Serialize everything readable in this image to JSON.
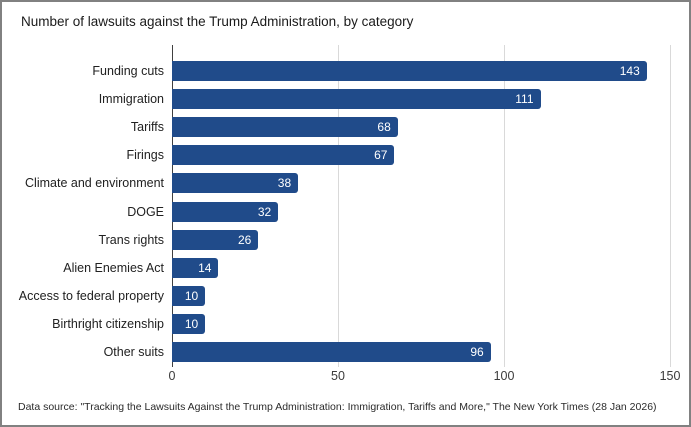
{
  "window": {
    "background": "#ffffff",
    "border_color": "#818181"
  },
  "footer_note": "Data source: \"Tracking the Lawsuits Against the Trump Administration: Immigration, Tariffs and More,\" The New York Times (28 Jan 2026)",
  "chart_data": {
    "type": "bar",
    "orientation": "horizontal",
    "title": "Number of lawsuits against the Trump Administration, by category",
    "categories": [
      "Funding cuts",
      "Immigration",
      "Tariffs",
      "Firings",
      "Climate and environment",
      "DOGE",
      "Trans rights",
      "Alien Enemies Act",
      "Access to federal property",
      "Birthright citizenship",
      "Other suits"
    ],
    "values": [
      143,
      111,
      68,
      67,
      38,
      32,
      26,
      14,
      10,
      10,
      96
    ],
    "xlabel": "",
    "ylabel": "",
    "xlim": [
      0,
      150
    ],
    "x_ticks": [
      0,
      50,
      100,
      150
    ],
    "grid": true,
    "legend": false,
    "bar_color": "#204b8a",
    "value_label_color": "#ffffff",
    "gridline_color": "#d9d9d9",
    "axis_line_color": "#404040",
    "source": "Data source: \"Tracking the Lawsuits Against the Trump Administration: Immigration, Tariffs and More,\" The New York Times (28 Jan 2026)"
  }
}
